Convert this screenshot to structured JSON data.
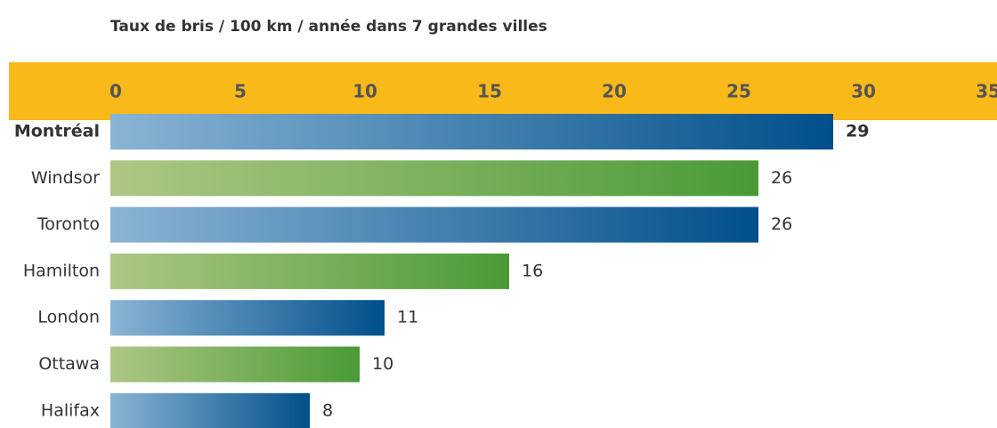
{
  "chart_data": {
    "type": "bar",
    "orientation": "horizontal",
    "title": "Taux de bris / 100 km / année dans 7 grandes villes",
    "categories": [
      "Montréal",
      "Windsor",
      "Toronto",
      "Hamilton",
      "London",
      "Ottawa",
      "Halifax"
    ],
    "values": [
      29,
      26,
      26,
      16,
      11,
      10,
      8
    ],
    "colors": [
      [
        "#8ab4d4",
        "#004f8b"
      ],
      [
        "#adc785",
        "#4a9a36"
      ],
      [
        "#8ab4d4",
        "#004f8b"
      ],
      [
        "#adc785",
        "#4a9a36"
      ],
      [
        "#8ab4d4",
        "#004f8b"
      ],
      [
        "#adc785",
        "#4a9a36"
      ],
      [
        "#8ab4d4",
        "#004f8b"
      ]
    ],
    "highlight_index": 0,
    "axis_band_color": "#f9b918",
    "xlim": [
      0,
      35
    ],
    "xticks": [
      0,
      5,
      10,
      15,
      20,
      25,
      30,
      35
    ],
    "grid": false
  }
}
